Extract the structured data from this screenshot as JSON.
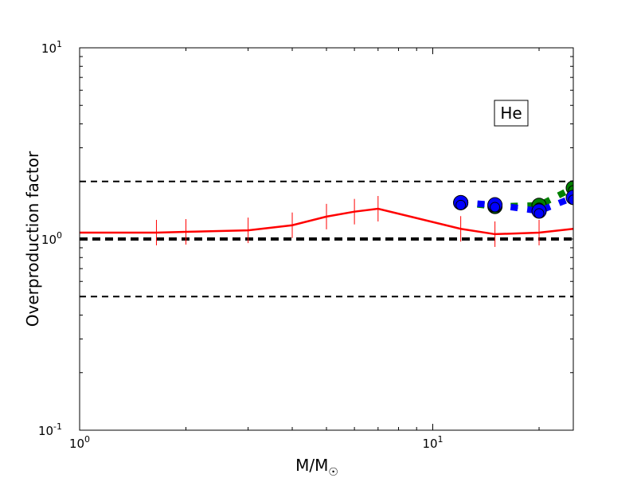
{
  "chart_data": {
    "type": "line",
    "title": "",
    "xlabel": "M/M",
    "xlabel_subscript": "☉",
    "ylabel": "Overproduction factor",
    "xscale": "log",
    "yscale": "log",
    "xlim": [
      1,
      25
    ],
    "ylim": [
      0.1,
      10
    ],
    "grid": false,
    "x_ticks": [
      {
        "base": "10",
        "exp": "0",
        "value": 1
      },
      {
        "base": "10",
        "exp": "1",
        "value": 10
      }
    ],
    "y_ticks": [
      {
        "base": "10",
        "exp": "-1",
        "value": 0.1
      },
      {
        "base": "10",
        "exp": "0",
        "value": 1
      },
      {
        "base": "10",
        "exp": "1",
        "value": 10
      }
    ],
    "annotation": "He",
    "reference_lines": [
      {
        "y": 2.0,
        "style": "dashed",
        "color": "#000000"
      },
      {
        "y": 1.0,
        "style": "dashed-thick",
        "color": "#000000"
      },
      {
        "y": 0.5,
        "style": "dashed",
        "color": "#000000"
      }
    ],
    "series": [
      {
        "style": "solid",
        "color": "#ff0000",
        "errorbars": true,
        "x": [
          1,
          1.65,
          2,
          3,
          4,
          5,
          6,
          7,
          12,
          15,
          20,
          25
        ],
        "y": [
          1.08,
          1.08,
          1.09,
          1.11,
          1.18,
          1.31,
          1.39,
          1.44,
          1.13,
          1.06,
          1.08,
          1.13
        ]
      },
      {
        "style": "dotted-thick",
        "color": "#008000",
        "marker": "circle",
        "x": [
          12,
          15,
          20,
          25
        ],
        "y": [
          1.55,
          1.48,
          1.5,
          1.85
        ]
      },
      {
        "style": "dotted-thick",
        "color": "#0000ff",
        "marker": "circle",
        "x": [
          12,
          15,
          20,
          25
        ],
        "y": [
          1.55,
          1.51,
          1.4,
          1.65
        ]
      }
    ]
  }
}
